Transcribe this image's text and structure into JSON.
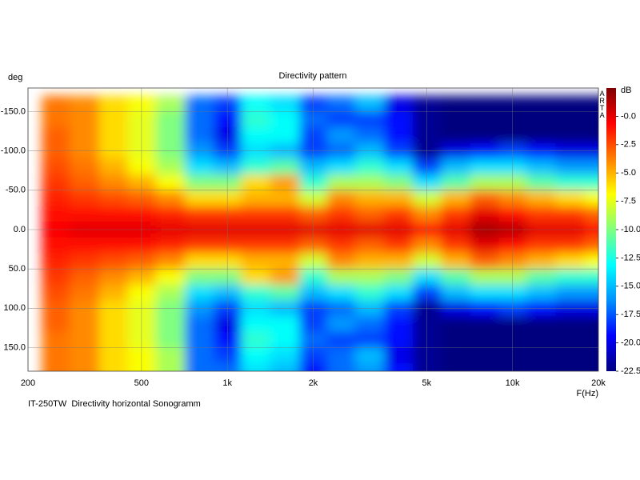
{
  "chart_data": {
    "type": "heatmap",
    "title": "Directivity pattern",
    "x_label": "F(Hz)",
    "y_label": "deg",
    "colorbar_label": "dB",
    "watermark": "ARTA",
    "footnote": "IT-250TW  Directivity horizontal Sonogramm",
    "xscale": "log",
    "xlim": [
      200,
      20000
    ],
    "xticks": [
      200,
      500,
      {
        "value": 1000,
        "label": "1k"
      },
      {
        "value": 2000,
        "label": "2k"
      },
      {
        "value": 5000,
        "label": "5k"
      },
      {
        "value": 10000,
        "label": "10k"
      },
      {
        "value": 20000,
        "label": "20k"
      }
    ],
    "ylim": [
      -180,
      180
    ],
    "y_inverted": true,
    "yticks": [
      {
        "value": -150,
        "label": "-150.0"
      },
      {
        "value": -100,
        "label": "-100.0"
      },
      {
        "value": -50,
        "label": "-50.0"
      },
      {
        "value": 0,
        "label": "0.0"
      },
      {
        "value": 50,
        "label": "50.0"
      },
      {
        "value": 100,
        "label": "100.0"
      },
      {
        "value": 150,
        "label": "150.0"
      }
    ],
    "grid": true,
    "clim": [
      -22.5,
      2.5
    ],
    "cbar_ticks": [
      {
        "value": 0,
        "label": "-0.0"
      },
      -2.5,
      {
        "value": -5,
        "label": "-5.0"
      },
      -7.5,
      {
        "value": -10,
        "label": "-10.0"
      },
      -12.5,
      {
        "value": -15,
        "label": "-15.0"
      },
      -17.5,
      {
        "value": -20,
        "label": "-20.0"
      },
      -22.5
    ],
    "colormap": [
      "#00007f",
      "#0000ff",
      "#0090ff",
      "#00ffff",
      "#80ff80",
      "#ffff00",
      "#ff8000",
      "#ff0000",
      "#7f0000"
    ],
    "x": [
      200,
      250,
      315,
      400,
      500,
      630,
      800,
      1000,
      1250,
      1600,
      2000,
      2500,
      3150,
      4000,
      5000,
      6300,
      8000,
      10000,
      12500,
      16000,
      20000
    ],
    "y": [
      -180,
      -160,
      -140,
      -120,
      -100,
      -80,
      -60,
      -40,
      -20,
      0,
      20,
      40,
      60,
      80,
      100,
      120,
      140,
      160,
      180
    ],
    "z": [
      [
        -3,
        -3.5,
        -4,
        -6,
        -7,
        -9,
        -17,
        -17,
        -14,
        -15,
        -19,
        -17,
        -16,
        -19,
        -22,
        -22.5,
        -22.5,
        -22.5,
        -22.5,
        -22.5,
        -22.5
      ],
      [
        -3,
        -3.5,
        -4,
        -6,
        -7,
        -9,
        -17,
        -18,
        -13,
        -14,
        -18,
        -17,
        -15,
        -20,
        -22,
        -22.5,
        -22.5,
        -22.5,
        -22.5,
        -22.5,
        -22.5
      ],
      [
        -3,
        -3.5,
        -4,
        -6,
        -7.5,
        -10,
        -17,
        -19,
        -12,
        -13,
        -17,
        -18,
        -18,
        -19,
        -22,
        -22.5,
        -22.5,
        -22.5,
        -22.5,
        -22.5,
        -22.5
      ],
      [
        -3,
        -3,
        -4,
        -6,
        -7.5,
        -10,
        -17,
        -20,
        -13,
        -13,
        -18,
        -16,
        -17,
        -19,
        -22,
        -22.5,
        -22.5,
        -22.5,
        -22.5,
        -22.5,
        -22.5
      ],
      [
        -2.5,
        -3,
        -4,
        -6,
        -7.5,
        -10,
        -16,
        -18,
        -14,
        -15,
        -18,
        -17,
        -15,
        -18,
        -22,
        -20,
        -19,
        -18,
        -19,
        -20,
        -20
      ],
      [
        -2.5,
        -2.5,
        -3.5,
        -5,
        -7,
        -9,
        -14,
        -15,
        -12,
        -11,
        -15,
        -14,
        -12,
        -14,
        -18,
        -15,
        -14,
        -14,
        -15,
        -16,
        -16
      ],
      [
        -2,
        -2,
        -3,
        -4,
        -5,
        -7,
        -10,
        -10,
        -6,
        -4.5,
        -12,
        -9,
        -9,
        -10,
        -14,
        -11,
        -9,
        -9,
        -11,
        -12,
        -12
      ],
      [
        -1.5,
        -1.5,
        -2,
        -2.5,
        -3,
        -4,
        -6,
        -6,
        -5,
        -5,
        -8,
        -4,
        -5,
        -5,
        -8,
        -5,
        -3,
        -4,
        -5,
        -6,
        -7
      ],
      [
        -1,
        -1,
        -1,
        -1,
        -1,
        -1.5,
        -2,
        -2,
        -2,
        -2,
        -3,
        -2,
        -3,
        -2,
        -4,
        -2,
        0,
        -1,
        -2,
        -2,
        -3
      ],
      [
        -0.5,
        -0.5,
        0,
        0,
        0,
        0,
        0,
        0,
        0,
        0,
        0,
        0,
        0,
        0,
        -1,
        0,
        1.5,
        1,
        0,
        0,
        -1
      ],
      [
        -1,
        -1,
        -1,
        -1,
        -1,
        -1.5,
        -2,
        -2,
        -2,
        -2,
        -3,
        -2,
        -3,
        -2,
        -4,
        -2,
        0,
        -1,
        -2,
        -2,
        -3
      ],
      [
        -1.5,
        -1.5,
        -2,
        -2.5,
        -3,
        -4,
        -6,
        -6,
        -5,
        -5,
        -8,
        -4,
        -5,
        -5,
        -8,
        -5,
        -3,
        -4,
        -5,
        -6,
        -7
      ],
      [
        -2,
        -2,
        -3,
        -4,
        -5,
        -7,
        -10,
        -10,
        -6,
        -4.5,
        -12,
        -9,
        -9,
        -10,
        -14,
        -11,
        -9,
        -9,
        -11,
        -12,
        -12
      ],
      [
        -2.5,
        -2.5,
        -3.5,
        -5,
        -7,
        -9,
        -14,
        -15,
        -12,
        -11,
        -15,
        -14,
        -12,
        -14,
        -18,
        -15,
        -14,
        -14,
        -15,
        -16,
        -16
      ],
      [
        -2.5,
        -3,
        -4,
        -6,
        -7.5,
        -10,
        -16,
        -18,
        -14,
        -15,
        -18,
        -17,
        -15,
        -18,
        -22,
        -20,
        -19,
        -18,
        -19,
        -20,
        -20
      ],
      [
        -3,
        -3,
        -4,
        -6,
        -7.5,
        -10,
        -17,
        -20,
        -13,
        -13,
        -18,
        -16,
        -17,
        -19,
        -22,
        -22.5,
        -22.5,
        -22.5,
        -22.5,
        -22.5,
        -22.5
      ],
      [
        -3,
        -3.5,
        -4,
        -6,
        -7.5,
        -10,
        -17,
        -19,
        -12,
        -13,
        -17,
        -18,
        -18,
        -19,
        -22,
        -22.5,
        -22.5,
        -22.5,
        -22.5,
        -22.5,
        -22.5
      ],
      [
        -3,
        -3.5,
        -4,
        -6,
        -7,
        -9,
        -17,
        -18,
        -13,
        -14,
        -18,
        -17,
        -15,
        -20,
        -22,
        -22.5,
        -22.5,
        -22.5,
        -22.5,
        -22.5,
        -22.5
      ],
      [
        -3,
        -3.5,
        -4,
        -6,
        -7,
        -9,
        -17,
        -17,
        -14,
        -15,
        -19,
        -17,
        -16,
        -19,
        -22,
        -22.5,
        -22.5,
        -22.5,
        -22.5,
        -22.5,
        -22.5
      ]
    ]
  }
}
